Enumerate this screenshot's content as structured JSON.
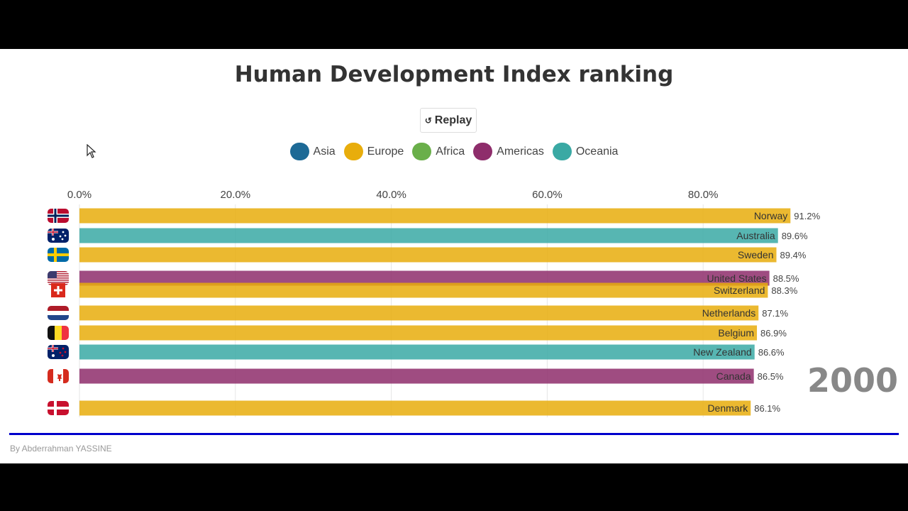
{
  "title": "Human Development Index ranking",
  "replay": {
    "label": "Replay",
    "icon": "replay-icon"
  },
  "legend": [
    {
      "label": "Asia",
      "color": "#1d6a96"
    },
    {
      "label": "Europe",
      "color": "#e8ad0c"
    },
    {
      "label": "Africa",
      "color": "#6aaf4a"
    },
    {
      "label": "Americas",
      "color": "#8e2d6b"
    },
    {
      "label": "Oceania",
      "color": "#3aa9a4"
    }
  ],
  "year": "2000",
  "credit": "By Abderrahman YASSINE",
  "chart_data": {
    "type": "bar",
    "orientation": "horizontal",
    "title": "Human Development Index ranking",
    "xlim": [
      0,
      95
    ],
    "ticks": [
      "0.0%",
      "20.0%",
      "40.0%",
      "60.0%",
      "80.0%"
    ],
    "tick_values": [
      0,
      20,
      40,
      60,
      80
    ],
    "grid": true,
    "series": [
      {
        "label": "Norway",
        "value": 91.2,
        "value_label": "91.2%",
        "region": "Europe",
        "flag": "norway-flag-icon"
      },
      {
        "label": "Australia",
        "value": 89.6,
        "value_label": "89.6%",
        "region": "Oceania",
        "flag": "australia-flag-icon"
      },
      {
        "label": "Sweden",
        "value": 89.4,
        "value_label": "89.4%",
        "region": "Europe",
        "flag": "sweden-flag-icon"
      },
      {
        "label": "United States",
        "value": 88.5,
        "value_label": "88.5%",
        "region": "Americas",
        "flag": "united-states-flag-icon"
      },
      {
        "label": "Switzerland",
        "value": 88.3,
        "value_label": "88.3%",
        "region": "Europe",
        "flag": "switzerland-flag-icon"
      },
      {
        "label": "Netherlands",
        "value": 87.1,
        "value_label": "87.1%",
        "region": "Europe",
        "flag": "netherlands-flag-icon"
      },
      {
        "label": "Belgium",
        "value": 86.9,
        "value_label": "86.9%",
        "region": "Europe",
        "flag": "belgium-flag-icon"
      },
      {
        "label": "New Zealand",
        "value": 86.6,
        "value_label": "86.6%",
        "region": "Oceania",
        "flag": "new-zealand-flag-icon"
      },
      {
        "label": "Canada",
        "value": 86.5,
        "value_label": "86.5%",
        "region": "Americas",
        "flag": "canada-flag-icon"
      },
      {
        "label": "Denmark",
        "value": 86.1,
        "value_label": "86.1%",
        "region": "Europe",
        "flag": "denmark-flag-icon"
      }
    ]
  }
}
